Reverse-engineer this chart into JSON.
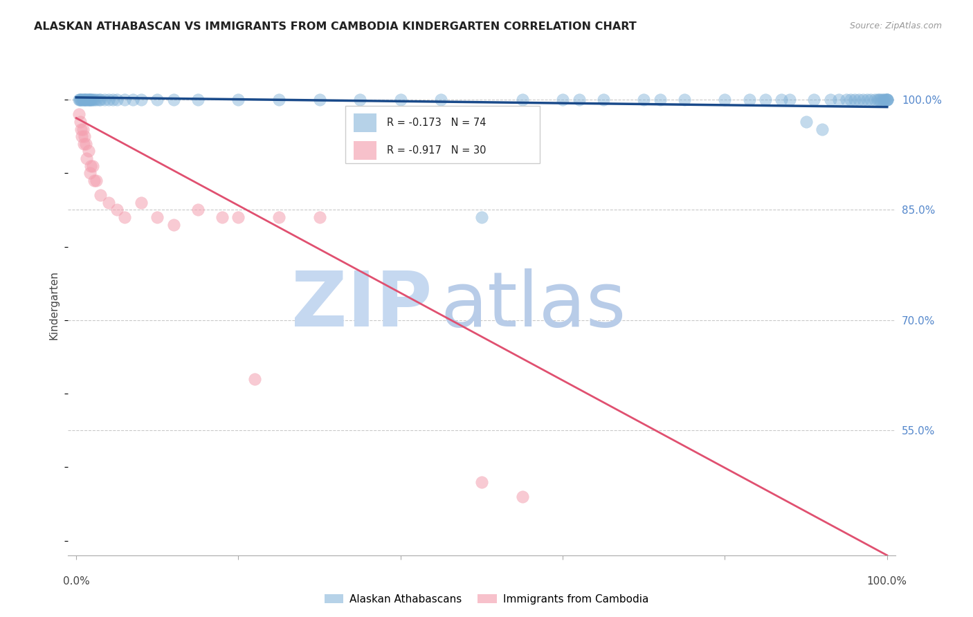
{
  "title": "ALASKAN ATHABASCAN VS IMMIGRANTS FROM CAMBODIA KINDERGARTEN CORRELATION CHART",
  "source": "Source: ZipAtlas.com",
  "ylabel": "Kindergarten",
  "background_color": "#ffffff",
  "blue_color": "#7aaed6",
  "blue_line_color": "#1a4a8a",
  "pink_color": "#f4a0b0",
  "pink_line_color": "#e05070",
  "watermark_zip_color": "#c5d8f0",
  "watermark_atlas_color": "#b8cce8",
  "legend_blue_R": "R = -0.173",
  "legend_blue_N": "N = 74",
  "legend_pink_R": "R = -0.917",
  "legend_pink_N": "N = 30",
  "ytick_labels": [
    "100.0%",
    "85.0%",
    "70.0%",
    "55.0%"
  ],
  "ytick_values": [
    1.0,
    0.85,
    0.7,
    0.55
  ],
  "grid_color": "#bbbbbb",
  "blue_scatter_x": [
    0.003,
    0.004,
    0.005,
    0.006,
    0.007,
    0.008,
    0.009,
    0.01,
    0.011,
    0.012,
    0.013,
    0.014,
    0.015,
    0.016,
    0.017,
    0.018,
    0.019,
    0.02,
    0.022,
    0.025,
    0.028,
    0.03,
    0.035,
    0.04,
    0.045,
    0.05,
    0.06,
    0.07,
    0.08,
    0.1,
    0.12,
    0.15,
    0.2,
    0.25,
    0.3,
    0.35,
    0.4,
    0.45,
    0.5,
    0.55,
    0.6,
    0.62,
    0.65,
    0.7,
    0.72,
    0.75,
    0.8,
    0.83,
    0.85,
    0.87,
    0.88,
    0.9,
    0.91,
    0.92,
    0.93,
    0.94,
    0.95,
    0.955,
    0.96,
    0.965,
    0.97,
    0.975,
    0.98,
    0.985,
    0.988,
    0.99,
    0.992,
    0.994,
    0.996,
    0.998,
    0.999,
    1.0,
    1.0,
    1.0
  ],
  "blue_scatter_y": [
    1.0,
    1.0,
    1.0,
    1.0,
    1.0,
    1.0,
    1.0,
    1.0,
    1.0,
    1.0,
    1.0,
    1.0,
    1.0,
    1.0,
    1.0,
    1.0,
    1.0,
    1.0,
    1.0,
    1.0,
    1.0,
    1.0,
    1.0,
    1.0,
    1.0,
    1.0,
    1.0,
    1.0,
    1.0,
    1.0,
    1.0,
    1.0,
    1.0,
    1.0,
    1.0,
    1.0,
    1.0,
    1.0,
    0.84,
    1.0,
    1.0,
    1.0,
    1.0,
    1.0,
    1.0,
    1.0,
    1.0,
    1.0,
    1.0,
    1.0,
    1.0,
    0.97,
    1.0,
    0.96,
    1.0,
    1.0,
    1.0,
    1.0,
    1.0,
    1.0,
    1.0,
    1.0,
    1.0,
    1.0,
    1.0,
    1.0,
    1.0,
    1.0,
    1.0,
    1.0,
    1.0,
    1.0,
    1.0,
    1.0
  ],
  "pink_scatter_x": [
    0.003,
    0.005,
    0.006,
    0.007,
    0.008,
    0.009,
    0.01,
    0.012,
    0.013,
    0.015,
    0.017,
    0.018,
    0.02,
    0.022,
    0.025,
    0.03,
    0.04,
    0.05,
    0.06,
    0.08,
    0.1,
    0.12,
    0.15,
    0.18,
    0.2,
    0.22,
    0.25,
    0.3,
    0.5,
    0.55
  ],
  "pink_scatter_y": [
    0.98,
    0.97,
    0.96,
    0.95,
    0.96,
    0.94,
    0.95,
    0.94,
    0.92,
    0.93,
    0.9,
    0.91,
    0.91,
    0.89,
    0.89,
    0.87,
    0.86,
    0.85,
    0.84,
    0.86,
    0.84,
    0.83,
    0.85,
    0.84,
    0.84,
    0.62,
    0.84,
    0.84,
    0.48,
    0.46
  ],
  "blue_trend_x": [
    0.0,
    1.0
  ],
  "blue_trend_y": [
    1.003,
    0.99
  ],
  "pink_trend_x": [
    0.0,
    1.0
  ],
  "pink_trend_y": [
    0.975,
    0.38
  ],
  "xlim": [
    -0.01,
    1.01
  ],
  "ylim": [
    0.38,
    1.06
  ],
  "xtick_positions": [
    0.0,
    0.2,
    0.4,
    0.6,
    0.8,
    1.0
  ]
}
